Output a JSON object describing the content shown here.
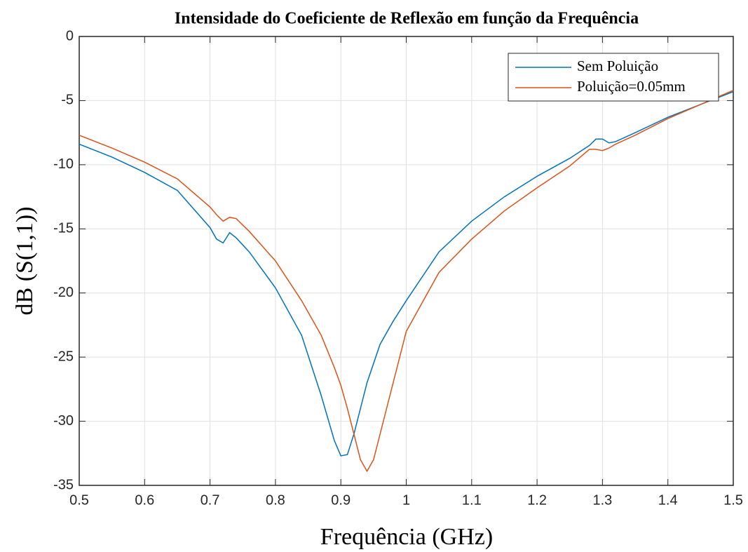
{
  "chart_data": {
    "type": "line",
    "title": "Intensidade do Coeficiente de Reflexão em função da Frequência",
    "x_label": "Frequência (GHz)",
    "y_label": "dB (S(1,1))",
    "x": [
      0.5,
      0.55,
      0.6,
      0.65,
      0.7,
      0.71,
      0.72,
      0.73,
      0.74,
      0.76,
      0.8,
      0.84,
      0.87,
      0.89,
      0.9,
      0.91,
      0.92,
      0.93,
      0.94,
      0.95,
      0.96,
      0.98,
      1.0,
      1.05,
      1.1,
      1.15,
      1.2,
      1.25,
      1.28,
      1.29,
      1.3,
      1.31,
      1.32,
      1.35,
      1.4,
      1.45,
      1.5
    ],
    "series": [
      {
        "name": "Sem Poluição",
        "color": "#0072bd",
        "values": [
          -8.4,
          -9.4,
          -10.6,
          -12.0,
          -14.9,
          -15.8,
          -16.1,
          -15.3,
          -15.7,
          -16.8,
          -19.6,
          -23.3,
          -28,
          -31.5,
          -32.7,
          -32.6,
          -31,
          -29,
          -27,
          -25.5,
          -24,
          -22.2,
          -20.6,
          -16.8,
          -14.4,
          -12.5,
          -10.9,
          -9.5,
          -8.5,
          -8.0,
          -8.0,
          -8.3,
          -8.2,
          -7.5,
          -6.3,
          -5.3,
          -4.3
        ]
      },
      {
        "name": "Poluição=0.05mm",
        "color": "#d95319",
        "values": [
          -7.7,
          -8.7,
          -9.8,
          -11.1,
          -13.3,
          -13.9,
          -14.4,
          -14.1,
          -14.2,
          -15.2,
          -17.5,
          -20.6,
          -23.3,
          -25.8,
          -27.2,
          -29,
          -31,
          -33,
          -33.9,
          -33,
          -31,
          -27,
          -23,
          -18.4,
          -15.8,
          -13.6,
          -11.8,
          -10.1,
          -8.8,
          -8.8,
          -8.9,
          -8.7,
          -8.4,
          -7.7,
          -6.4,
          -5.3,
          -4.2
        ]
      }
    ],
    "xlim": [
      0.5,
      1.5
    ],
    "xticks": [
      0.5,
      0.6,
      0.7,
      0.8,
      0.9,
      1,
      1.1,
      1.2,
      1.3,
      1.4,
      1.5
    ],
    "ylim": [
      -35,
      0
    ],
    "yticks": [
      0,
      -5,
      -10,
      -15,
      -20,
      -25,
      -30,
      -35
    ],
    "grid": true,
    "legend": "upper right"
  }
}
